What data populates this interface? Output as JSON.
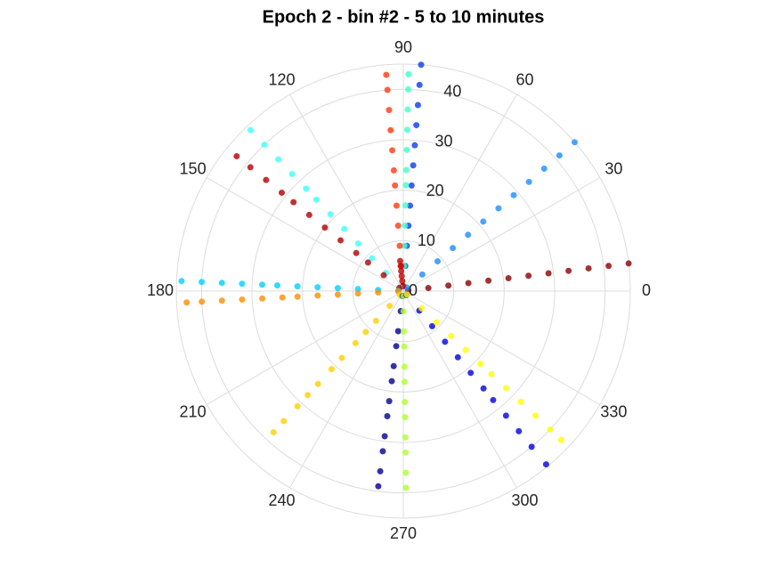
{
  "chart_data": {
    "type": "polar_scatter",
    "title": "Epoch 2 - bin #2 - 5 to 10 minutes",
    "rlim": [
      0,
      45
    ],
    "rticks": [
      0,
      10,
      20,
      30,
      40
    ],
    "thetaticks": [
      0,
      30,
      60,
      90,
      120,
      150,
      180,
      210,
      240,
      270,
      300,
      330
    ],
    "grid": true,
    "series": [
      {
        "color": "#8b0000",
        "theta": [
          7,
          7,
          7,
          7,
          7,
          7,
          7,
          7,
          7,
          7,
          7,
          7
        ],
        "r": [
          1,
          5,
          9,
          13,
          17,
          21,
          25,
          29,
          33,
          37,
          41,
          45
        ]
      },
      {
        "color": "#1e8cff",
        "theta": [
          41,
          41,
          41,
          41,
          41,
          41,
          41,
          41,
          41,
          41,
          41,
          41
        ],
        "r": [
          1,
          5,
          9,
          13,
          17,
          21,
          25,
          29,
          33,
          37,
          41,
          45
        ]
      },
      {
        "color": "#0a3cf0",
        "theta": [
          85.5,
          85.5,
          85.5,
          85.5,
          85.5,
          85.5,
          85.5,
          85.5,
          85.5,
          85.5,
          85.5,
          85.5
        ],
        "r": [
          1,
          5,
          9,
          13,
          17,
          21,
          25,
          29,
          33,
          37,
          41,
          45
        ]
      },
      {
        "color": "#40ffc8",
        "theta": [
          88.6,
          88.6,
          88.6,
          88.6,
          88.6,
          88.6,
          88.6,
          88.6,
          88.6,
          88.6,
          88.6,
          88.6
        ],
        "r": [
          1,
          5,
          9,
          13,
          17,
          21,
          24,
          28,
          32,
          36,
          40,
          43
        ]
      },
      {
        "color": "#ff3a10",
        "theta": [
          94.5,
          94.5,
          94.5,
          94.5,
          94.5,
          94.5,
          94.5,
          94.5,
          94.5,
          94.5,
          94.5,
          94.5
        ],
        "r": [
          1,
          5,
          9,
          13,
          17,
          21,
          24,
          28,
          32,
          36,
          40,
          43
        ]
      },
      {
        "color": "#c00000",
        "theta": [
          96,
          96,
          96,
          96,
          96,
          96
        ],
        "r": [
          1,
          2,
          3,
          4,
          5,
          6
        ]
      },
      {
        "color": "#40ffff",
        "theta": [
          133.5,
          133.5,
          133.5,
          133.5,
          133.5,
          133.5,
          133.5,
          133.5,
          133.5,
          133.5,
          133.5,
          133.5
        ],
        "r": [
          1,
          5,
          9,
          13,
          17,
          21,
          25,
          28,
          32,
          36,
          40,
          44
        ]
      },
      {
        "color": "#b00000",
        "theta": [
          141,
          141,
          141,
          141,
          141,
          141,
          141,
          141,
          141,
          141,
          141,
          141
        ],
        "r": [
          1,
          5,
          9,
          12,
          16,
          20,
          24,
          28,
          31,
          35,
          39,
          42.5
        ]
      },
      {
        "color": "#00d0ff",
        "theta": [
          177.4,
          177.4,
          177.4,
          177.4,
          177.4,
          177.4,
          177.4,
          177.4,
          177.4,
          177.4,
          177.4,
          177.4
        ],
        "r": [
          1,
          5,
          9,
          13,
          17,
          21,
          25,
          28,
          32,
          36,
          40,
          44
        ]
      },
      {
        "color": "#ff8c00",
        "theta": [
          183,
          183,
          183,
          183,
          183,
          183,
          183,
          183,
          183,
          183,
          183,
          183
        ],
        "r": [
          1,
          5,
          9,
          13,
          17,
          21,
          24,
          28,
          32,
          36,
          40,
          43
        ]
      },
      {
        "color": "#ffd000",
        "theta": [
          227.4,
          227.4,
          227.4,
          227.4,
          227.4,
          227.4,
          227.4,
          227.4,
          227.4,
          227.4,
          227.4,
          227.4
        ],
        "r": [
          1,
          4,
          8,
          11,
          14,
          18,
          21,
          25,
          28,
          31,
          35,
          38
        ]
      },
      {
        "color": "#000090",
        "theta": [
          262.7,
          262.7,
          262.7,
          262.7,
          262.7,
          262.7,
          262.7,
          262.7,
          262.7,
          262.7,
          262.7,
          262.7
        ],
        "r": [
          1,
          4,
          8,
          11,
          15,
          18,
          22,
          25,
          29,
          32,
          36,
          39
        ]
      },
      {
        "color": "#b0ff30",
        "theta": [
          270.8,
          270.8,
          270.8,
          270.8,
          270.8,
          270.8,
          270.8,
          270.8,
          270.8,
          270.8,
          270.8,
          270.8
        ],
        "r": [
          1,
          4,
          8,
          11,
          15,
          18,
          22,
          25,
          29,
          32,
          36,
          39
        ]
      },
      {
        "color": "#0000e0",
        "theta": [
          309.5,
          309.5,
          309.5,
          309.5,
          309.5,
          309.5,
          309.5,
          309.5,
          309.5,
          309.5,
          309.5,
          309.5
        ],
        "r": [
          1,
          5,
          9,
          13,
          17,
          21,
          25,
          28,
          32,
          36,
          40,
          44.5
        ]
      },
      {
        "color": "#ffff00",
        "theta": [
          316.7,
          316.7,
          316.7,
          316.7,
          316.7,
          316.7,
          316.7,
          316.7,
          316.7,
          316.7,
          316.7,
          316.7
        ],
        "r": [
          1,
          5,
          9,
          13,
          17,
          21,
          24,
          28,
          32,
          36,
          40,
          43
        ]
      }
    ]
  }
}
